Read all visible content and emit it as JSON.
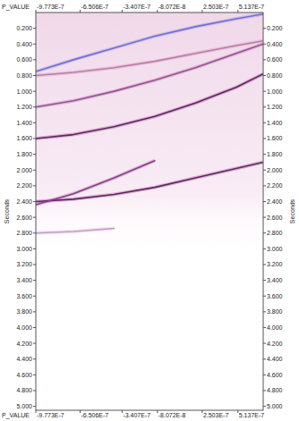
{
  "chart_data": {
    "type": "line",
    "x_label": "P_VALUE",
    "y_label": "Seconds",
    "x": [
      -9.773e-07,
      -7e-07,
      -4e-07,
      -1e-07,
      2e-07,
      5e-07,
      7e-07
    ],
    "series": [
      {
        "color": "#6f6fd6",
        "values": [
          0.75,
          0.6,
          0.45,
          0.3,
          0.18,
          0.08,
          0.02
        ]
      },
      {
        "color": "#c07aa8",
        "values": [
          0.8,
          0.76,
          0.7,
          0.62,
          0.52,
          0.42,
          0.36
        ]
      },
      {
        "color": "#9a4f94",
        "values": [
          1.2,
          1.12,
          1.0,
          0.86,
          0.7,
          0.52,
          0.4
        ]
      },
      {
        "color": "#6a1f66",
        "values": [
          1.6,
          1.55,
          1.45,
          1.32,
          1.15,
          0.95,
          0.78
        ]
      },
      {
        "color": "#6a1f66",
        "values": [
          2.4,
          2.37,
          2.31,
          2.22,
          2.1,
          1.98,
          1.9
        ]
      },
      {
        "color": "#8a3a86",
        "values": [
          2.44,
          2.3,
          2.1,
          1.88,
          null,
          null,
          null
        ]
      },
      {
        "color": "#c79ac4",
        "values": [
          2.8,
          2.78,
          2.74,
          null,
          null,
          null,
          null
        ]
      }
    ],
    "xlim": [
      -9.773e-07,
      7e-07
    ],
    "xticks": [
      {
        "value": -9.773e-07,
        "label": "-9.773E-7"
      },
      {
        "value": -6.506e-07,
        "label": "-6.506E-7"
      },
      {
        "value": -3.407e-07,
        "label": "-3.407E-7"
      },
      {
        "value": -8.072e-08,
        "label": "-8.072E-8"
      },
      {
        "value": 2.503e-07,
        "label": "2.503E-7"
      },
      {
        "value": 5.137e-07,
        "label": "5.137E-7"
      }
    ],
    "ylim": [
      0,
      5.05
    ],
    "yticks": [
      {
        "value": 0.2,
        "label": "0.200"
      },
      {
        "value": 0.4,
        "label": "0.400"
      },
      {
        "value": 0.6,
        "label": "0.600"
      },
      {
        "value": 0.8,
        "label": "0.800"
      },
      {
        "value": 1.0,
        "label": "1.000"
      },
      {
        "value": 1.2,
        "label": "1.200"
      },
      {
        "value": 1.4,
        "label": "1.400"
      },
      {
        "value": 1.6,
        "label": "1.600"
      },
      {
        "value": 1.8,
        "label": "1.800"
      },
      {
        "value": 2.0,
        "label": "2.000"
      },
      {
        "value": 2.2,
        "label": "2.200"
      },
      {
        "value": 2.4,
        "label": "2.400"
      },
      {
        "value": 2.6,
        "label": "2.600"
      },
      {
        "value": 2.8,
        "label": "2.800"
      },
      {
        "value": 3.0,
        "label": "3.000"
      },
      {
        "value": 3.2,
        "label": "3.200"
      },
      {
        "value": 3.4,
        "label": "3.400"
      },
      {
        "value": 3.6,
        "label": "3.600"
      },
      {
        "value": 3.8,
        "label": "3.800"
      },
      {
        "value": 4.0,
        "label": "4.000"
      },
      {
        "value": 4.2,
        "label": "4.200"
      },
      {
        "value": 4.4,
        "label": "4.400"
      },
      {
        "value": 4.6,
        "label": "4.600"
      },
      {
        "value": 4.8,
        "label": "4.800"
      },
      {
        "value": 5.0,
        "label": "5.000"
      }
    ],
    "grid": false
  }
}
